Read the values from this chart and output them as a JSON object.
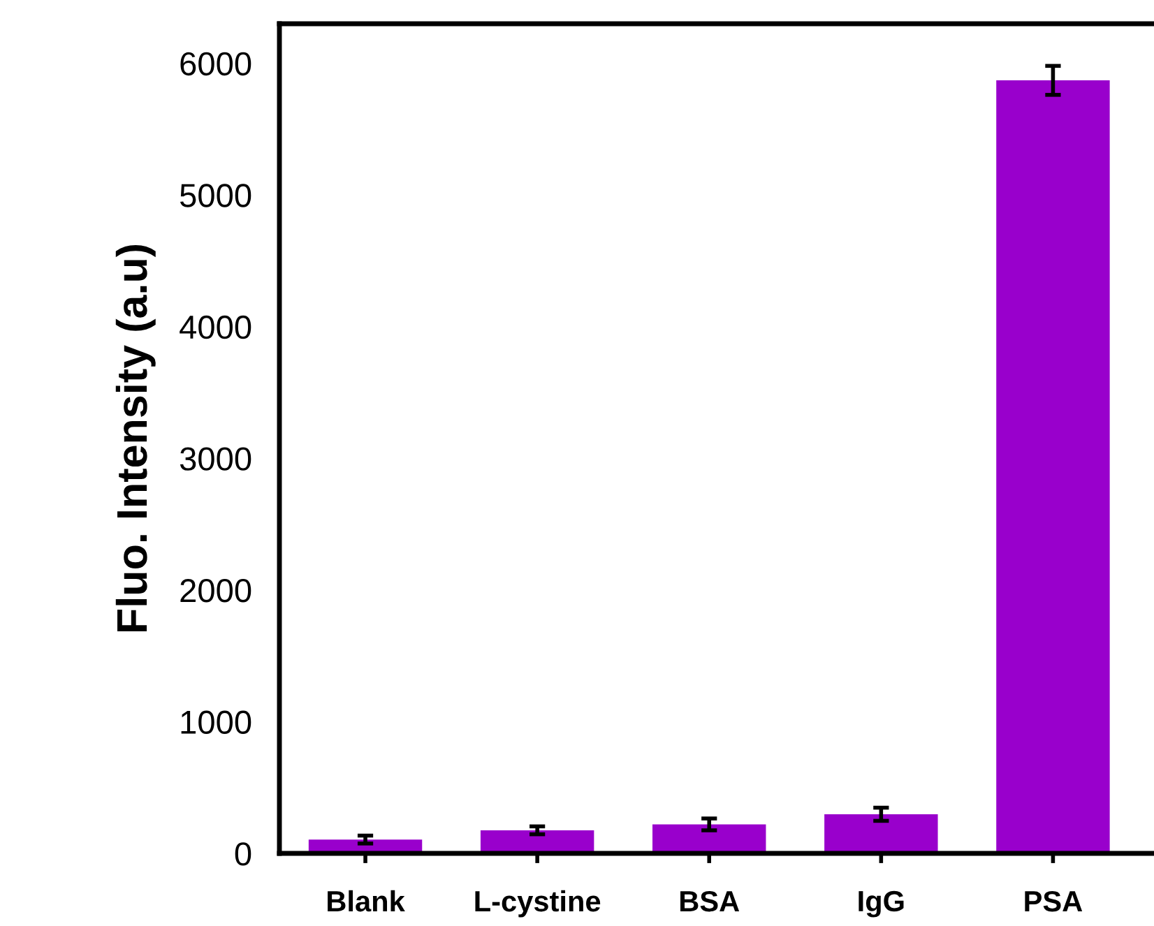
{
  "chart_data": {
    "type": "bar",
    "ylabel": "Fluo. Intensity (a.u)",
    "categories": [
      "Blank",
      "L-cystine",
      "BSA",
      "IgG",
      "PSA"
    ],
    "values": [
      105,
      175,
      220,
      297,
      5870
    ],
    "errors": [
      30,
      30,
      45,
      50,
      110
    ],
    "color": "#9900cc",
    "ylim": [
      0,
      6300
    ],
    "yticks": [
      0,
      1000,
      2000,
      3000,
      4000,
      5000,
      6000
    ],
    "grid": false,
    "legend": false
  }
}
